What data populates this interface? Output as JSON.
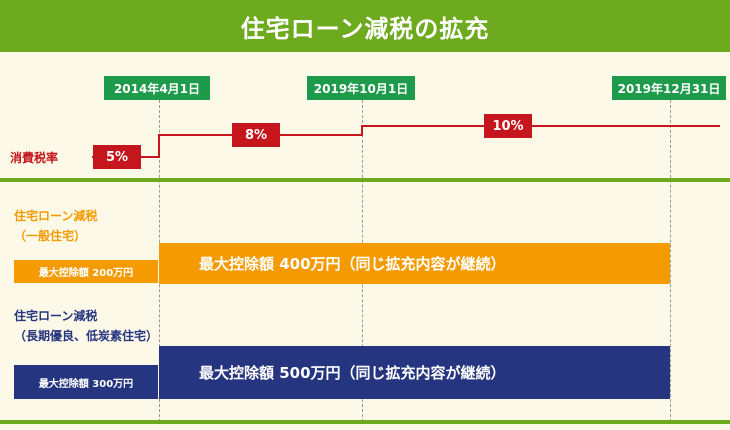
{
  "title": "住宅ローン減税の拡充",
  "timeline": {
    "dates": [
      "2014年4月1日",
      "2019年10月1日",
      "2019年12月31日"
    ]
  },
  "tax": {
    "label": "消費税率",
    "rates": [
      "5%",
      "8%",
      "10%"
    ],
    "line_color": "#c4161c"
  },
  "sections": [
    {
      "title_line1": "住宅ローン減税",
      "title_line2": "（一般住宅）",
      "before": "最大控除額 200万円",
      "after": "最大控除額 400万円（同じ拡充内容が継続）",
      "color": "#f59a00"
    },
    {
      "title_line1": "住宅ローン減税",
      "title_line2": "（長期優良、低炭素住宅）",
      "before": "最大控除額 300万円",
      "after": "最大控除額 500万円（同じ拡充内容が継続）",
      "color": "#25357f"
    }
  ],
  "colors": {
    "accent_green": "#6daa1e",
    "date_green": "#1e9a4b",
    "background": "#fdf9e9"
  }
}
